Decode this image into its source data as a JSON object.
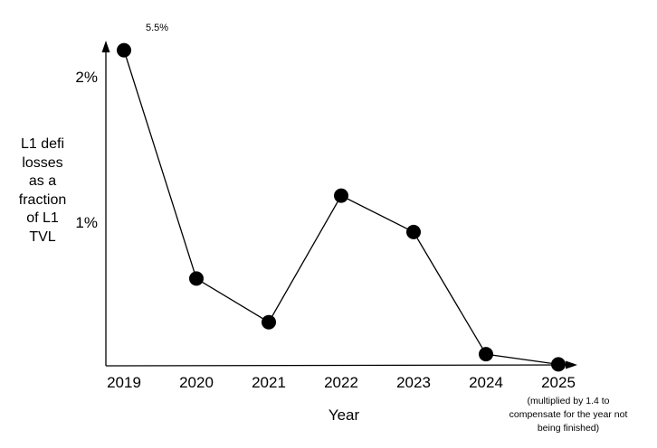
{
  "chart_data": {
    "type": "line",
    "categories": [
      "2019",
      "2020",
      "2021",
      "2022",
      "2023",
      "2024",
      "2025"
    ],
    "values": [
      2.17,
      0.6,
      0.3,
      1.17,
      0.92,
      0.08,
      0.01
    ],
    "clipped_point": {
      "category": "2019",
      "label": "5.5%",
      "note": "plotted at top of axis, actual value labeled beside it"
    },
    "point_label": "5.5%",
    "xlabel": "Year",
    "ylabel": "L1 defi losses as a fraction of L1 TVL",
    "ylabel_multiline": "L1 defi\nlosses\nas a\nfraction\nof L1\nTVL",
    "yticks": [
      {
        "value": 1,
        "label": "1%"
      },
      {
        "value": 2,
        "label": "2%"
      }
    ],
    "ylim": [
      0,
      2.24
    ],
    "footnote": "(multiplied by 1.4 to\ncompensate for the year not\nbeing finished)",
    "grid": false,
    "legend": false,
    "line_color": "#000000",
    "marker_color": "#000000",
    "axis_color": "#000000",
    "background_color": "#ffffff"
  }
}
